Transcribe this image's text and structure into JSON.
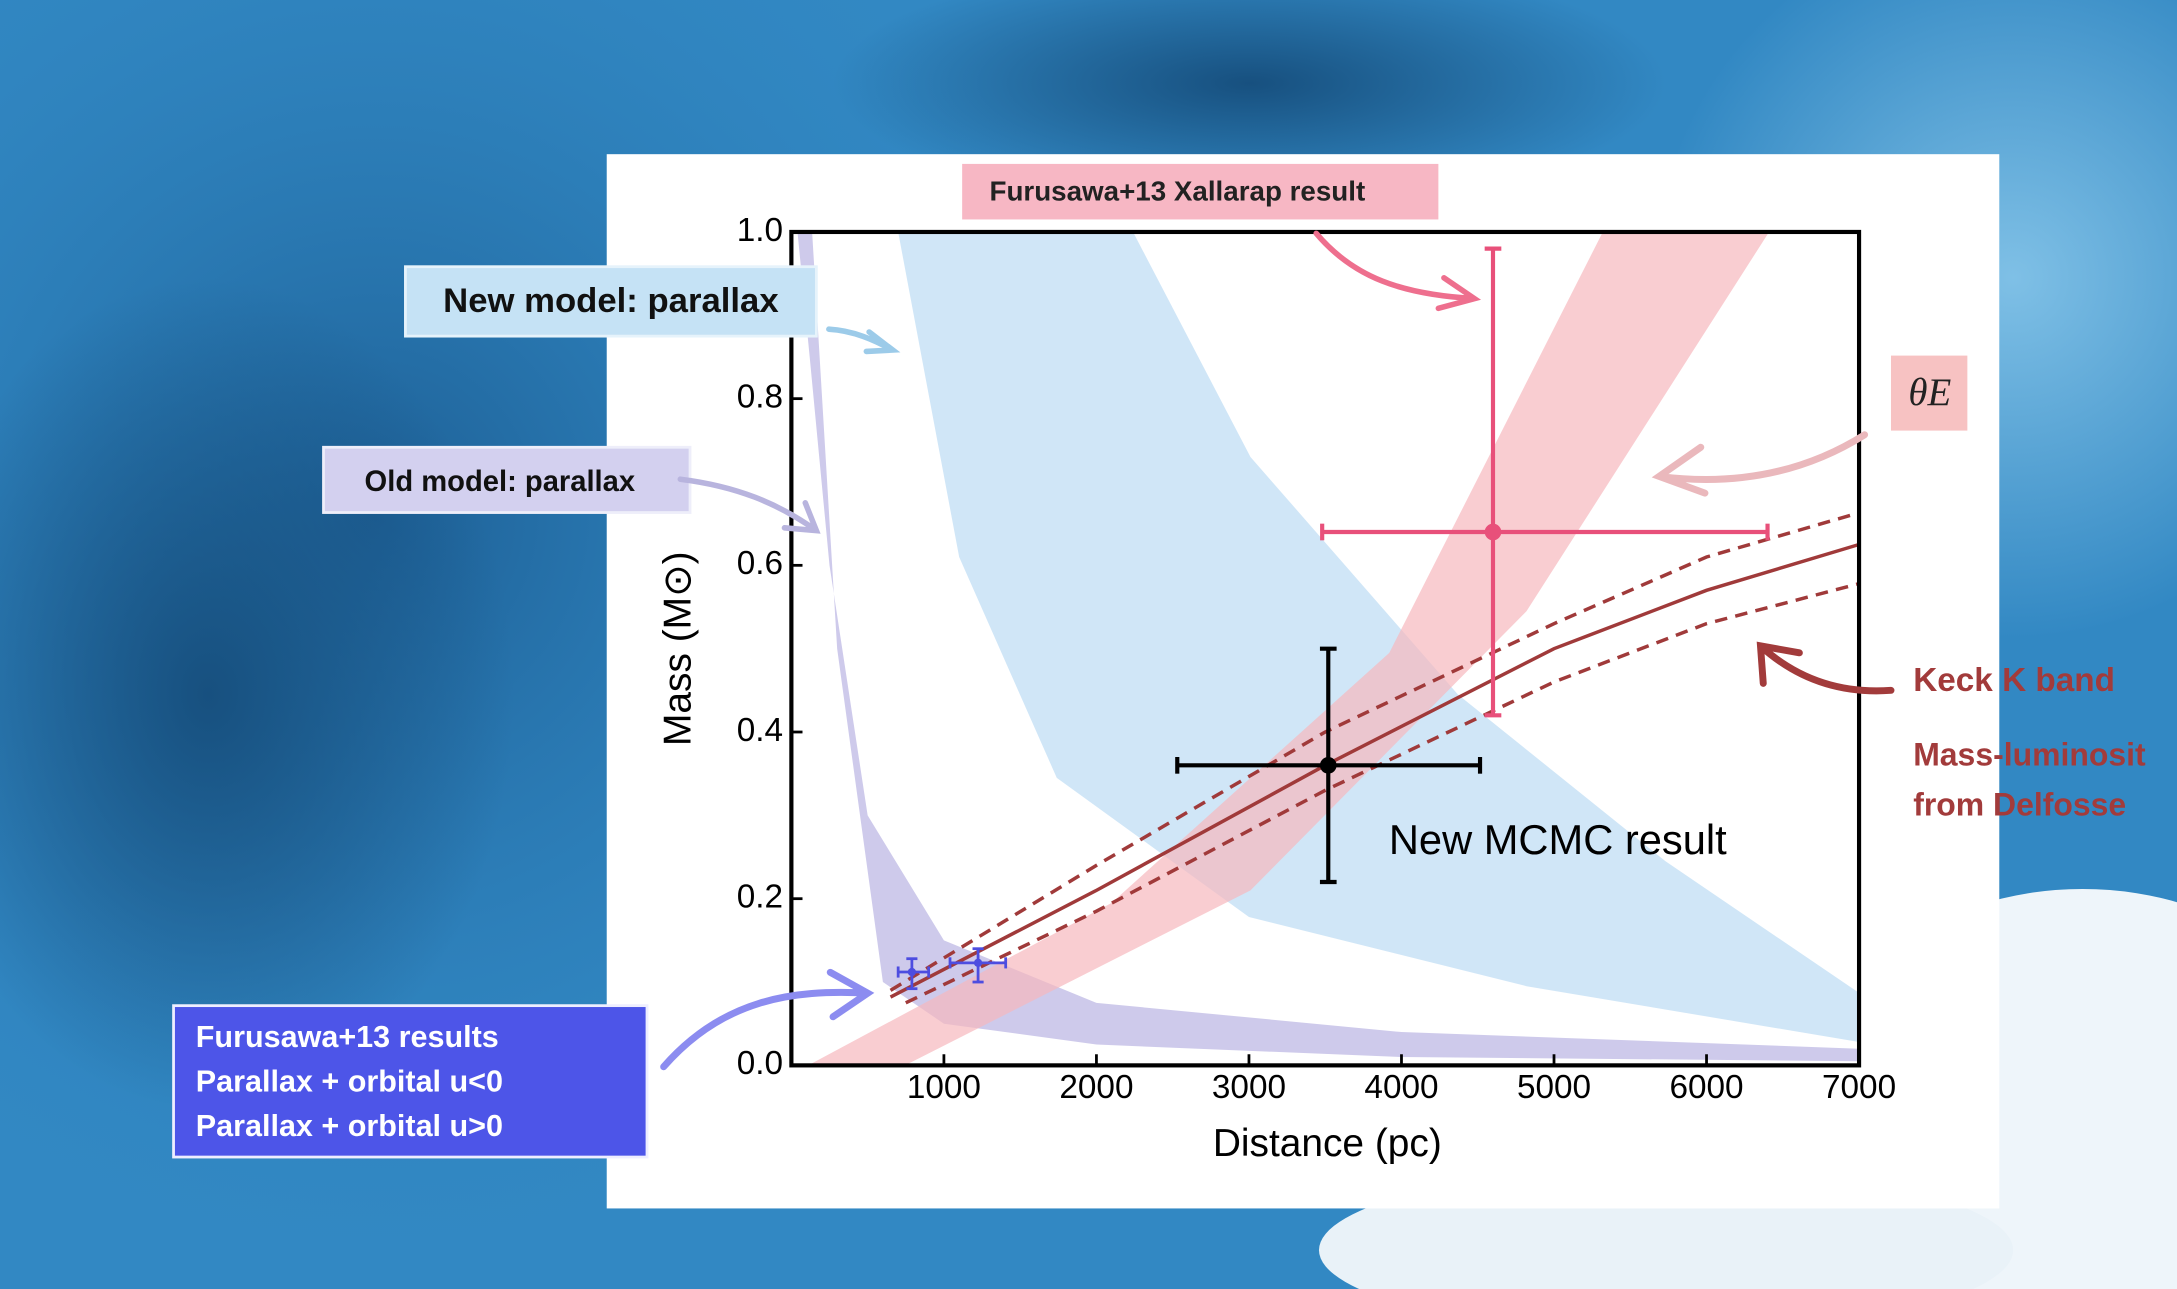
{
  "chart_data": {
    "type": "scatter",
    "xlabel": "Distance (pc)",
    "ylabel": "Mass (M⊙)",
    "xlim": [
      0,
      7000
    ],
    "ylim": [
      0,
      1
    ],
    "xticks": [
      1000,
      2000,
      3000,
      4000,
      5000,
      6000,
      7000
    ],
    "yticks": [
      {
        "value": 0,
        "label": "0.0"
      },
      0.2,
      0.4,
      0.6,
      0.8,
      {
        "value": 1,
        "label": "1.0"
      }
    ],
    "bands": [
      {
        "name": "Old model: parallax",
        "color": "#b9b3e3",
        "upper": {
          "x": [
            40,
            120,
            250,
            500,
            1000,
            2000,
            4000,
            7000
          ],
          "y": [
            1.0,
            0.85,
            0.6,
            0.3,
            0.15,
            0.075,
            0.04,
            0.02
          ]
        },
        "lower": {
          "x": [
            7000,
            4000,
            2000,
            1000,
            600,
            300,
            136
          ],
          "y": [
            0.005,
            0.01,
            0.025,
            0.05,
            0.1,
            0.5,
            1.0
          ]
        }
      },
      {
        "name": "New model: parallax",
        "color": "#bcdcf3",
        "upper": {
          "x": [
            2240,
            3010,
            4370,
            5730,
            7000
          ],
          "y": [
            1.0,
            0.73,
            0.445,
            0.245,
            0.087
          ]
        },
        "lower": {
          "x": [
            7000,
            4820,
            3000,
            1740,
            1100,
            700
          ],
          "y": [
            0.028,
            0.095,
            0.178,
            0.345,
            0.61,
            1.0
          ]
        }
      },
      {
        "name": "θE",
        "color": "#f6b8bd",
        "upper": {
          "x": [
            110,
            2100,
            3920,
            5320
          ],
          "y": [
            0,
            0.195,
            0.495,
            1.0
          ]
        },
        "lower": {
          "x": [
            6410,
            4820,
            3010,
            745
          ],
          "y": [
            1.0,
            0.545,
            0.21,
            0
          ]
        }
      }
    ],
    "lines": [
      {
        "color": "#a03a3a",
        "style": "solid",
        "x": [
          650,
          2000,
          3500,
          5000,
          6000,
          7000
        ],
        "y": [
          0.082,
          0.21,
          0.36,
          0.5,
          0.57,
          0.625
        ]
      },
      {
        "color": "#a03a3a",
        "style": "dashed",
        "x": [
          650,
          2000,
          3500,
          5000,
          6000,
          7000
        ],
        "y": [
          0.09,
          0.24,
          0.4,
          0.53,
          0.61,
          0.663
        ]
      },
      {
        "color": "#a03a3a",
        "style": "dashed",
        "x": [
          750,
          2000,
          3500,
          5000,
          6000,
          7000
        ],
        "y": [
          0.075,
          0.185,
          0.33,
          0.46,
          0.53,
          0.578
        ]
      }
    ],
    "annotations": [
      "Keck K band",
      "Mass-luminosit",
      "from Delfosse"
    ],
    "point_group_title": "Furusawa+13 results",
    "series": [
      {
        "name": "Furusawa+13 Xallarap result",
        "color": "#e8507a",
        "x": [
          4600
        ],
        "values": [
          0.64
        ],
        "xmin": [
          3480
        ],
        "xmax": [
          6400
        ],
        "ymin": [
          0.42
        ],
        "ymax": [
          0.98
        ]
      },
      {
        "name": "New MCMC result",
        "color": "#000000",
        "x": [
          3520
        ],
        "values": [
          0.36
        ],
        "xmin": [
          2530
        ],
        "xmax": [
          4515
        ],
        "ymin": [
          0.22
        ],
        "ymax": [
          0.5
        ]
      },
      {
        "name": "Parallax + orbital u<0",
        "color": "#4d4de0",
        "x": [
          790
        ],
        "values": [
          0.112
        ],
        "xmin": [
          700
        ],
        "xmax": [
          900
        ],
        "ymin": [
          0.092
        ],
        "ymax": [
          0.128
        ]
      },
      {
        "name": "Parallax + orbital u>0",
        "color": "#4d4de0",
        "x": [
          1224
        ],
        "values": [
          0.123
        ],
        "xmin": [
          1040
        ],
        "xmax": [
          1405
        ],
        "ymin": [
          0.1
        ],
        "ymax": [
          0.14
        ]
      }
    ]
  }
}
